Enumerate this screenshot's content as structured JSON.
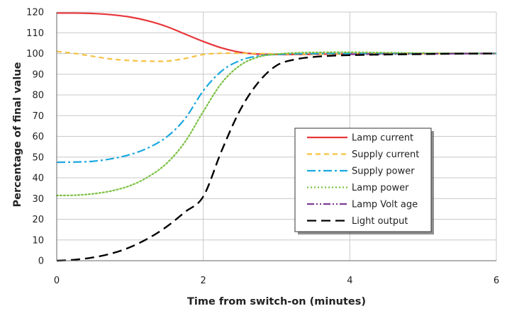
{
  "chart_data": {
    "type": "line",
    "title": "",
    "xlabel": "Time from switch-on (minutes)",
    "ylabel": "Percentage of final value",
    "xlim": [
      0,
      6
    ],
    "ylim": [
      0,
      120
    ],
    "x_ticks": [
      "0",
      "2",
      "4",
      "6"
    ],
    "y_ticks": [
      "0",
      "10",
      "20",
      "30",
      "40",
      "50",
      "60",
      "70",
      "80",
      "90",
      "100",
      "110",
      "120"
    ],
    "grid": true,
    "legend_position": "right-center",
    "x": [
      0,
      0.25,
      0.5,
      0.75,
      1,
      1.25,
      1.5,
      1.75,
      2,
      2.25,
      2.5,
      2.75,
      3,
      3.25,
      3.5,
      3.75,
      4,
      4.5,
      5,
      5.5,
      6
    ],
    "series": [
      {
        "name": "Lamp current",
        "color": "#e8363a",
        "dash": "solid",
        "values": [
          119.5,
          119.5,
          119.3,
          118.7,
          117.6,
          115.7,
          113,
          109.4,
          105.8,
          102.7,
          100.6,
          99.7,
          99.5,
          99.5,
          99.6,
          99.7,
          99.8,
          99.9,
          100,
          100,
          100
        ]
      },
      {
        "name": "Supply current",
        "color": "#f5c242",
        "dash": "dashed",
        "values": [
          101,
          100,
          98.6,
          97.3,
          96.6,
          96.3,
          96.3,
          97.6,
          99.5,
          100.1,
          100.1,
          100,
          99.8,
          99.7,
          99.7,
          99.7,
          99.8,
          99.9,
          99.9,
          100,
          100
        ]
      },
      {
        "name": "Supply power",
        "color": "#1aa8df",
        "dash": "dash-dot",
        "values": [
          47.5,
          47.6,
          48,
          49.2,
          51.2,
          54.5,
          59.7,
          68.5,
          82,
          91.5,
          96.6,
          98.8,
          99.5,
          99.8,
          99.9,
          100,
          100,
          100,
          100,
          100,
          100
        ]
      },
      {
        "name": "Lamp power",
        "color": "#7cc142",
        "dash": "dotted",
        "values": [
          31.5,
          31.6,
          32.3,
          33.7,
          36.2,
          40.5,
          47,
          57.3,
          72,
          85.7,
          94.2,
          98.3,
          99.7,
          100.3,
          100.5,
          100.6,
          100.6,
          100.4,
          100.2,
          100.1,
          100
        ]
      },
      {
        "name": "Lamp Volt age",
        "color": "#7e3a96",
        "dash": "dash-dot-dot",
        "values": [
          null,
          null,
          null,
          null,
          null,
          null,
          null,
          null,
          null,
          null,
          null,
          null,
          null,
          null,
          null,
          null,
          99.6,
          99.7,
          99.8,
          99.9,
          100
        ]
      },
      {
        "name": "Light output",
        "color": "#000000",
        "dash": "long-dash",
        "values": [
          0,
          0.5,
          1.6,
          3.5,
          6.5,
          10.8,
          16.4,
          23.5,
          31,
          53,
          72.5,
          86,
          94.2,
          97.1,
          98.3,
          98.9,
          99.2,
          99.5,
          99.7,
          99.9,
          100
        ]
      }
    ]
  }
}
